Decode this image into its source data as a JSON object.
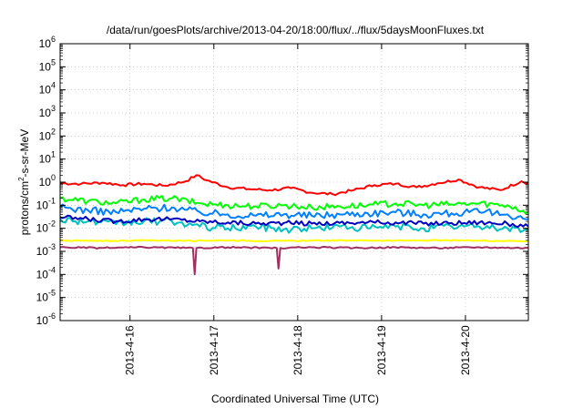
{
  "chart_data": {
    "type": "line",
    "title": "/data/run/goesPlots/archive/2013-04-20/18:00/flux/../flux/5daysMoonFluxes.txt",
    "xlabel": "Coordinated Universal Time (UTC)",
    "ylabel": {
      "prefix": "protons/cm",
      "superscript": "2",
      "suffix": "-s-sr-MeV"
    },
    "yscale": "log",
    "ylim": [
      1e-06,
      1000000.0
    ],
    "yticks": [
      {
        "value": 1000000.0,
        "mantissa": "10",
        "exponent": "6"
      },
      {
        "value": 100000.0,
        "mantissa": "10",
        "exponent": "5"
      },
      {
        "value": 10000.0,
        "mantissa": "10",
        "exponent": "4"
      },
      {
        "value": 1000.0,
        "mantissa": "10",
        "exponent": "3"
      },
      {
        "value": 100.0,
        "mantissa": "10",
        "exponent": "2"
      },
      {
        "value": 10.0,
        "mantissa": "10",
        "exponent": "1"
      },
      {
        "value": 1.0,
        "mantissa": "10",
        "exponent": "0"
      },
      {
        "value": 0.1,
        "mantissa": "10",
        "exponent": "-1"
      },
      {
        "value": 0.01,
        "mantissa": "10",
        "exponent": "-2"
      },
      {
        "value": 0.001,
        "mantissa": "10",
        "exponent": "-3"
      },
      {
        "value": 0.0001,
        "mantissa": "10",
        "exponent": "-4"
      },
      {
        "value": 1e-05,
        "mantissa": "10",
        "exponent": "-5"
      },
      {
        "value": 1e-06,
        "mantissa": "10",
        "exponent": "-6"
      }
    ],
    "xlim": [
      "2013-04-15T04:00",
      "2013-04-20T18:00"
    ],
    "xticks": [
      {
        "value": "2013-04-16T00:00",
        "label": "2013-4-16"
      },
      {
        "value": "2013-04-17T00:00",
        "label": "2013-4-17"
      },
      {
        "value": "2013-04-18T00:00",
        "label": "2013-4-18"
      },
      {
        "value": "2013-04-19T00:00",
        "label": "2013-4-19"
      },
      {
        "value": "2013-04-20T00:00",
        "label": "2013-4-20"
      }
    ],
    "grid": true,
    "legend": "none",
    "series": [
      {
        "color": "#ff0000",
        "x": [
          "2013-04-15T04:00",
          "2013-04-15T10:00",
          "2013-04-15T16:00",
          "2013-04-15T22:00",
          "2013-04-16T04:00",
          "2013-04-16T10:00",
          "2013-04-16T16:00",
          "2013-04-16T19:00",
          "2013-04-16T22:00",
          "2013-04-17T04:00",
          "2013-04-17T10:00",
          "2013-04-17T16:00",
          "2013-04-17T22:00",
          "2013-04-18T04:00",
          "2013-04-18T10:00",
          "2013-04-18T16:00",
          "2013-04-18T22:00",
          "2013-04-19T04:00",
          "2013-04-19T10:00",
          "2013-04-19T16:00",
          "2013-04-19T22:00",
          "2013-04-20T04:00",
          "2013-04-20T10:00",
          "2013-04-20T16:00",
          "2013-04-20T18:00"
        ],
        "values": [
          0.9,
          0.85,
          0.95,
          0.75,
          0.85,
          0.7,
          1.1,
          2.0,
          1.2,
          0.6,
          0.5,
          0.45,
          0.55,
          0.35,
          0.3,
          0.45,
          0.75,
          0.85,
          0.6,
          0.9,
          1.3,
          0.6,
          0.45,
          1.1,
          0.9
        ]
      },
      {
        "color": "#00ff00",
        "x": [
          "2013-04-15T04:00",
          "2013-04-15T12:00",
          "2013-04-15T20:00",
          "2013-04-16T04:00",
          "2013-04-16T12:00",
          "2013-04-16T20:00",
          "2013-04-17T04:00",
          "2013-04-17T12:00",
          "2013-04-17T20:00",
          "2013-04-18T04:00",
          "2013-04-18T12:00",
          "2013-04-18T20:00",
          "2013-04-19T04:00",
          "2013-04-19T12:00",
          "2013-04-19T20:00",
          "2013-04-20T04:00",
          "2013-04-20T12:00",
          "2013-04-20T18:00"
        ],
        "values": [
          0.2,
          0.15,
          0.12,
          0.18,
          0.2,
          0.12,
          0.1,
          0.09,
          0.1,
          0.08,
          0.09,
          0.1,
          0.12,
          0.1,
          0.11,
          0.12,
          0.1,
          0.05
        ]
      },
      {
        "color": "#0080ff",
        "x": [
          "2013-04-15T04:00",
          "2013-04-15T12:00",
          "2013-04-15T20:00",
          "2013-04-16T04:00",
          "2013-04-16T12:00",
          "2013-04-16T20:00",
          "2013-04-17T04:00",
          "2013-04-17T12:00",
          "2013-04-17T20:00",
          "2013-04-18T04:00",
          "2013-04-18T12:00",
          "2013-04-18T20:00",
          "2013-04-19T04:00",
          "2013-04-19T12:00",
          "2013-04-19T20:00",
          "2013-04-20T04:00",
          "2013-04-20T12:00",
          "2013-04-20T18:00"
        ],
        "values": [
          0.08,
          0.06,
          0.05,
          0.07,
          0.08,
          0.05,
          0.04,
          0.035,
          0.04,
          0.035,
          0.04,
          0.045,
          0.05,
          0.04,
          0.045,
          0.05,
          0.04,
          0.025
        ]
      },
      {
        "color": "#00c0c0",
        "x": [
          "2013-04-15T04:00",
          "2013-04-15T12:00",
          "2013-04-15T20:00",
          "2013-04-16T04:00",
          "2013-04-16T12:00",
          "2013-04-16T20:00",
          "2013-04-17T04:00",
          "2013-04-17T12:00",
          "2013-04-17T20:00",
          "2013-04-18T04:00",
          "2013-04-18T12:00",
          "2013-04-18T20:00",
          "2013-04-19T04:00",
          "2013-04-19T12:00",
          "2013-04-19T20:00",
          "2013-04-20T04:00",
          "2013-04-20T12:00",
          "2013-04-20T18:00"
        ],
        "values": [
          0.025,
          0.02,
          0.015,
          0.02,
          0.02,
          0.012,
          0.01,
          0.012,
          0.009,
          0.01,
          0.012,
          0.01,
          0.012,
          0.01,
          0.012,
          0.012,
          0.01,
          0.008
        ]
      },
      {
        "color": "#0000c0",
        "x": [
          "2013-04-15T04:00",
          "2013-04-15T12:00",
          "2013-04-15T20:00",
          "2013-04-16T04:00",
          "2013-04-16T12:00",
          "2013-04-16T20:00",
          "2013-04-17T04:00",
          "2013-04-17T12:00",
          "2013-04-17T20:00",
          "2013-04-18T04:00",
          "2013-04-18T12:00",
          "2013-04-18T20:00",
          "2013-04-19T04:00",
          "2013-04-19T12:00",
          "2013-04-19T20:00",
          "2013-04-20T04:00",
          "2013-04-20T12:00",
          "2013-04-20T18:00"
        ],
        "values": [
          0.03,
          0.025,
          0.02,
          0.025,
          0.025,
          0.02,
          0.018,
          0.016,
          0.017,
          0.016,
          0.017,
          0.018,
          0.018,
          0.016,
          0.017,
          0.018,
          0.016,
          0.012
        ]
      },
      {
        "color": "#ffff00",
        "x": [
          "2013-04-15T04:00",
          "2013-04-15T16:00",
          "2013-04-16T04:00",
          "2013-04-16T16:00",
          "2013-04-17T04:00",
          "2013-04-17T16:00",
          "2013-04-18T04:00",
          "2013-04-18T16:00",
          "2013-04-19T04:00",
          "2013-04-19T16:00",
          "2013-04-20T04:00",
          "2013-04-20T18:00"
        ],
        "values": [
          0.003,
          0.0028,
          0.003,
          0.0029,
          0.003,
          0.0028,
          0.0029,
          0.003,
          0.0029,
          0.003,
          0.0029,
          0.0028
        ]
      },
      {
        "color": "#a03060",
        "x": [
          "2013-04-15T04:00",
          "2013-04-15T16:00",
          "2013-04-16T04:00",
          "2013-04-16T16:00",
          "2013-04-16T18:00",
          "2013-04-16T18:30",
          "2013-04-16T19:00",
          "2013-04-17T04:00",
          "2013-04-17T16:00",
          "2013-04-17T18:00",
          "2013-04-17T18:30",
          "2013-04-17T19:00",
          "2013-04-18T04:00",
          "2013-04-18T16:00",
          "2013-04-19T04:00",
          "2013-04-19T16:00",
          "2013-04-20T04:00",
          "2013-04-20T18:00"
        ],
        "values": [
          0.0015,
          0.0014,
          0.0015,
          0.0014,
          0.0014,
          0.0001,
          0.0014,
          0.0015,
          0.0014,
          0.0014,
          0.00018,
          0.0014,
          0.0015,
          0.0014,
          0.0015,
          0.0014,
          0.0015,
          0.0014
        ]
      }
    ]
  }
}
